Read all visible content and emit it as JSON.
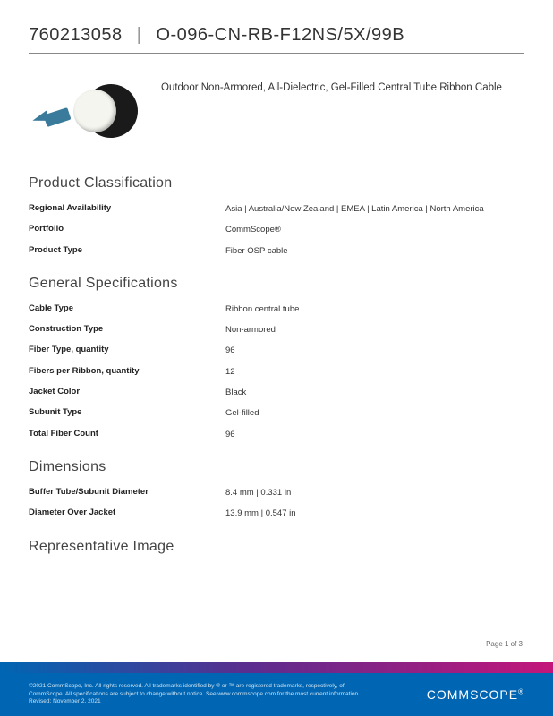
{
  "header": {
    "part_number": "760213058",
    "model": "O-096-CN-RB-F12NS/5X/99B"
  },
  "hero": {
    "description": "Outdoor Non-Armored, All-Dielectric, Gel-Filled Central Tube Ribbon Cable"
  },
  "sections": {
    "classification": {
      "title": "Product Classification",
      "rows": [
        {
          "label": "Regional Availability",
          "value": "Asia   |   Australia/New Zealand   |   EMEA   |   Latin America   |   North America"
        },
        {
          "label": "Portfolio",
          "value": "CommScope®"
        },
        {
          "label": "Product Type",
          "value": "Fiber OSP cable"
        }
      ]
    },
    "general": {
      "title": "General Specifications",
      "rows": [
        {
          "label": "Cable Type",
          "value": "Ribbon central tube"
        },
        {
          "label": "Construction Type",
          "value": "Non-armored"
        },
        {
          "label": "Fiber Type, quantity",
          "value": "96"
        },
        {
          "label": "Fibers per Ribbon, quantity",
          "value": "12"
        },
        {
          "label": "Jacket Color",
          "value": "Black"
        },
        {
          "label": "Subunit Type",
          "value": "Gel-filled"
        },
        {
          "label": "Total Fiber Count",
          "value": "96"
        }
      ]
    },
    "dimensions": {
      "title": "Dimensions",
      "rows": [
        {
          "label": "Buffer Tube/Subunit Diameter",
          "value": "8.4 mm   |   0.331 in"
        },
        {
          "label": "Diameter Over Jacket",
          "value": "13.9 mm   |   0.547 in"
        }
      ]
    },
    "repimage": {
      "title": "Representative Image"
    }
  },
  "page_indicator": "Page 1 of 3",
  "footer": {
    "copyright": "©2021 CommScope, Inc. All rights reserved. All trademarks identified by ® or ™ are registered trademarks, respectively, of CommScope. All specifications are subject to change without notice. See www.commscope.com for the most current information. Revised: November 2, 2021",
    "logo": "COMMSCOPE"
  },
  "colors": {
    "footer_bg": "#0066b3",
    "gradient_start": "#0066b3",
    "gradient_mid": "#5b2d8e",
    "gradient_end": "#c4157a"
  }
}
